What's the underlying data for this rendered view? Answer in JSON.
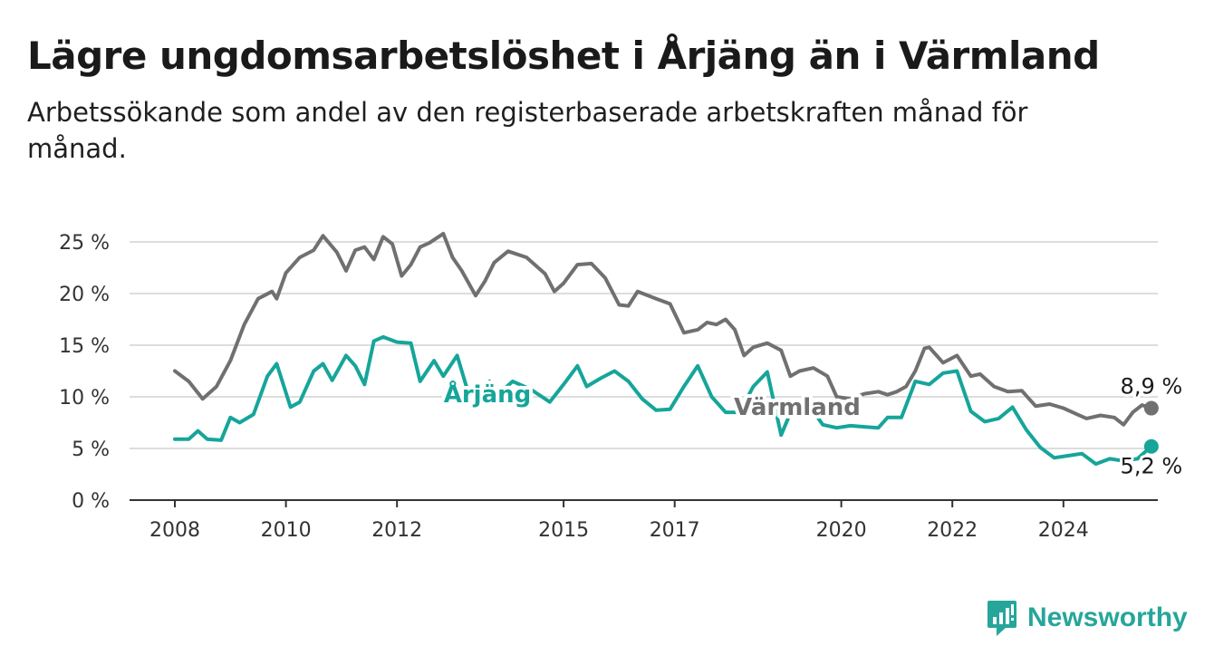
{
  "header": {
    "title": "Lägre ungdomsarbetslöshet i Årjäng än i Värmland",
    "subtitle": "Arbetssökande som andel av den registerbaserade arbetskraften månad för månad."
  },
  "brand": {
    "name": "Newsworthy",
    "icon": "newsworthy-logo-icon",
    "color": "#26a69a"
  },
  "colors": {
    "arjang": "#16a59a",
    "varmland": "#707070",
    "grid": "#dddddd",
    "axis": "#333333"
  },
  "chart_data": {
    "type": "line",
    "title": "Lägre ungdomsarbetslöshet i Årjäng än i Värmland",
    "subtitle": "Arbetssökande som andel av den registerbaserade arbetskraften månad för månad.",
    "y_unit": "%",
    "ylim": [
      0,
      25
    ],
    "y_ticks": [
      "0 %",
      "5 %",
      "10 %",
      "15 %",
      "20 %",
      "25 %"
    ],
    "x_ticks": [
      "2008",
      "2010",
      "2012",
      "2015",
      "2017",
      "2020",
      "2022",
      "2024"
    ],
    "grid": true,
    "legend": "inline labels",
    "series": [
      {
        "name": "Värmland",
        "color": "#707070",
        "end_label": "8,9 %",
        "points": [
          [
            "2008-01",
            12.5
          ],
          [
            "2008-04",
            11.5
          ],
          [
            "2008-07",
            9.8
          ],
          [
            "2008-10",
            11.0
          ],
          [
            "2009-01",
            13.5
          ],
          [
            "2009-04",
            17.0
          ],
          [
            "2009-07",
            19.5
          ],
          [
            "2009-10",
            20.2
          ],
          [
            "2009-11",
            19.5
          ],
          [
            "2010-01",
            22.0
          ],
          [
            "2010-04",
            23.5
          ],
          [
            "2010-07",
            24.2
          ],
          [
            "2010-09",
            25.6
          ],
          [
            "2010-12",
            24.0
          ],
          [
            "2011-02",
            22.2
          ],
          [
            "2011-04",
            24.2
          ],
          [
            "2011-06",
            24.5
          ],
          [
            "2011-08",
            23.3
          ],
          [
            "2011-10",
            25.5
          ],
          [
            "2011-12",
            24.8
          ],
          [
            "2012-02",
            21.7
          ],
          [
            "2012-04",
            22.8
          ],
          [
            "2012-06",
            24.5
          ],
          [
            "2012-08",
            24.9
          ],
          [
            "2012-11",
            25.8
          ],
          [
            "2013-01",
            23.5
          ],
          [
            "2013-03",
            22.2
          ],
          [
            "2013-06",
            19.8
          ],
          [
            "2013-08",
            21.2
          ],
          [
            "2013-10",
            23.0
          ],
          [
            "2014-01",
            24.1
          ],
          [
            "2014-05",
            23.5
          ],
          [
            "2014-09",
            21.9
          ],
          [
            "2014-11",
            20.2
          ],
          [
            "2015-01",
            21.0
          ],
          [
            "2015-04",
            22.8
          ],
          [
            "2015-07",
            22.9
          ],
          [
            "2015-10",
            21.5
          ],
          [
            "2016-01",
            18.9
          ],
          [
            "2016-03",
            18.8
          ],
          [
            "2016-05",
            20.2
          ],
          [
            "2016-09",
            19.5
          ],
          [
            "2016-12",
            19.0
          ],
          [
            "2017-03",
            16.2
          ],
          [
            "2017-06",
            16.5
          ],
          [
            "2017-08",
            17.2
          ],
          [
            "2017-10",
            17.0
          ],
          [
            "2017-12",
            17.5
          ],
          [
            "2018-02",
            16.5
          ],
          [
            "2018-04",
            14.0
          ],
          [
            "2018-06",
            14.8
          ],
          [
            "2018-09",
            15.2
          ],
          [
            "2018-12",
            14.5
          ],
          [
            "2019-02",
            12.0
          ],
          [
            "2019-04",
            12.5
          ],
          [
            "2019-07",
            12.8
          ],
          [
            "2019-10",
            12.0
          ],
          [
            "2019-12",
            10.0
          ],
          [
            "2020-03",
            9.8
          ],
          [
            "2020-06",
            10.3
          ],
          [
            "2020-09",
            10.5
          ],
          [
            "2020-11",
            10.2
          ],
          [
            "2021-01",
            10.5
          ],
          [
            "2021-03",
            11.0
          ],
          [
            "2021-05",
            12.5
          ],
          [
            "2021-07",
            14.7
          ],
          [
            "2021-08",
            14.8
          ],
          [
            "2021-11",
            13.3
          ],
          [
            "2022-02",
            14.0
          ],
          [
            "2022-05",
            12.0
          ],
          [
            "2022-07",
            12.2
          ],
          [
            "2022-10",
            11.0
          ],
          [
            "2023-01",
            10.5
          ],
          [
            "2023-04",
            10.6
          ],
          [
            "2023-07",
            9.1
          ],
          [
            "2023-10",
            9.3
          ],
          [
            "2024-01",
            8.9
          ],
          [
            "2024-04",
            8.3
          ],
          [
            "2024-06",
            7.9
          ],
          [
            "2024-09",
            8.2
          ],
          [
            "2024-12",
            8.0
          ],
          [
            "2025-02",
            7.3
          ],
          [
            "2025-04",
            8.5
          ],
          [
            "2025-06",
            9.2
          ],
          [
            "2025-08",
            8.9
          ]
        ]
      },
      {
        "name": "Årjäng",
        "color": "#16a59a",
        "end_label": "5,2 %",
        "points": [
          [
            "2008-01",
            5.9
          ],
          [
            "2008-04",
            5.9
          ],
          [
            "2008-06",
            6.7
          ],
          [
            "2008-08",
            5.9
          ],
          [
            "2008-11",
            5.8
          ],
          [
            "2009-01",
            8.0
          ],
          [
            "2009-03",
            7.5
          ],
          [
            "2009-06",
            8.3
          ],
          [
            "2009-09",
            12.0
          ],
          [
            "2009-11",
            13.2
          ],
          [
            "2010-02",
            9.0
          ],
          [
            "2010-04",
            9.5
          ],
          [
            "2010-07",
            12.5
          ],
          [
            "2010-09",
            13.2
          ],
          [
            "2010-11",
            11.6
          ],
          [
            "2011-02",
            14.0
          ],
          [
            "2011-04",
            13.0
          ],
          [
            "2011-06",
            11.2
          ],
          [
            "2011-08",
            15.4
          ],
          [
            "2011-10",
            15.8
          ],
          [
            "2012-01",
            15.3
          ],
          [
            "2012-04",
            15.2
          ],
          [
            "2012-06",
            11.5
          ],
          [
            "2012-09",
            13.5
          ],
          [
            "2012-11",
            12.0
          ],
          [
            "2013-02",
            14.0
          ],
          [
            "2013-04",
            11.0
          ],
          [
            "2013-07",
            10.0
          ],
          [
            "2013-09",
            11.5
          ],
          [
            "2013-11",
            10.3
          ],
          [
            "2014-02",
            11.5
          ],
          [
            "2014-06",
            10.7
          ],
          [
            "2014-10",
            9.5
          ],
          [
            "2015-01",
            11.2
          ],
          [
            "2015-04",
            13.0
          ],
          [
            "2015-06",
            11.0
          ],
          [
            "2015-09",
            11.8
          ],
          [
            "2015-12",
            12.5
          ],
          [
            "2016-03",
            11.5
          ],
          [
            "2016-06",
            9.8
          ],
          [
            "2016-09",
            8.7
          ],
          [
            "2016-12",
            8.8
          ],
          [
            "2017-03",
            11.0
          ],
          [
            "2017-06",
            13.0
          ],
          [
            "2017-09",
            10.0
          ],
          [
            "2017-12",
            8.5
          ],
          [
            "2018-03",
            8.5
          ],
          [
            "2018-06",
            11.0
          ],
          [
            "2018-09",
            12.4
          ],
          [
            "2018-12",
            6.3
          ],
          [
            "2019-03",
            9.5
          ],
          [
            "2019-06",
            9.2
          ],
          [
            "2019-09",
            7.3
          ],
          [
            "2019-12",
            7.0
          ],
          [
            "2020-03",
            7.2
          ],
          [
            "2020-06",
            7.1
          ],
          [
            "2020-09",
            7.0
          ],
          [
            "2020-11",
            8.0
          ],
          [
            "2021-02",
            8.0
          ],
          [
            "2021-05",
            11.5
          ],
          [
            "2021-08",
            11.2
          ],
          [
            "2021-11",
            12.3
          ],
          [
            "2022-02",
            12.5
          ],
          [
            "2022-05",
            8.6
          ],
          [
            "2022-08",
            7.6
          ],
          [
            "2022-11",
            7.9
          ],
          [
            "2023-02",
            9.0
          ],
          [
            "2023-05",
            6.8
          ],
          [
            "2023-08",
            5.1
          ],
          [
            "2023-11",
            4.1
          ],
          [
            "2024-02",
            4.3
          ],
          [
            "2024-05",
            4.5
          ],
          [
            "2024-08",
            3.5
          ],
          [
            "2024-11",
            4.0
          ],
          [
            "2025-02",
            3.8
          ],
          [
            "2025-05",
            4.0
          ],
          [
            "2025-08",
            5.2
          ]
        ]
      }
    ]
  }
}
